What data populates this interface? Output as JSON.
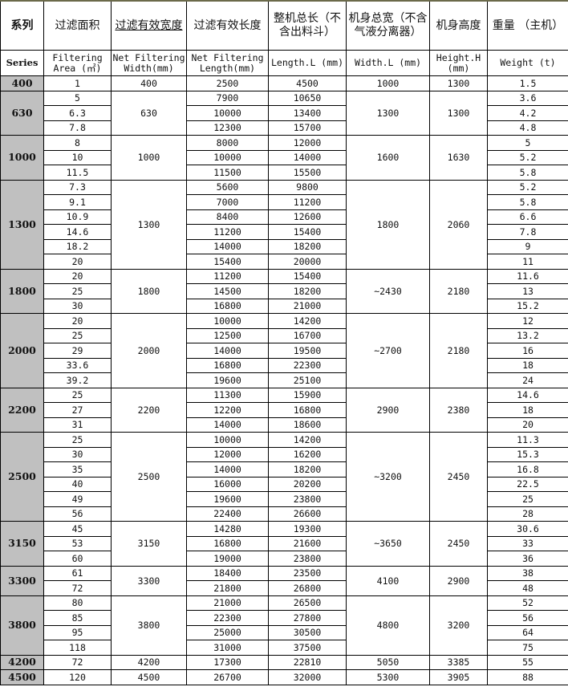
{
  "header_cn": [
    "系列",
    "过滤面积",
    "过滤有效宽度",
    "过滤有效长度",
    "整机总长（不含出料斗）",
    "机身总宽（不含气液分离器）",
    "机身高度",
    "重量 （主机）"
  ],
  "header_en": [
    "Series",
    "Filtering Area (㎡)",
    "Net Filtering Width(mm)",
    "Net Filtering Length(mm)",
    "Length.L (mm)",
    "Width.L (mm)",
    "Height.H (mm)",
    "Weight (t)"
  ],
  "groups": [
    {
      "series": "400",
      "width": "400",
      "body_width": "1000",
      "height": "1300",
      "rows": [
        [
          "1",
          "2500",
          "4500",
          "1.5"
        ]
      ]
    },
    {
      "series": "630",
      "width": "630",
      "body_width": "1300",
      "height": "1300",
      "rows": [
        [
          "5",
          "7900",
          "10650",
          "3.6"
        ],
        [
          "6.3",
          "10000",
          "13400",
          "4.2"
        ],
        [
          "7.8",
          "12300",
          "15700",
          "4.8"
        ]
      ]
    },
    {
      "series": "1000",
      "width": "1000",
      "body_width": "1600",
      "height": "1630",
      "rows": [
        [
          "8",
          "8000",
          "12000",
          "5"
        ],
        [
          "10",
          "10000",
          "14000",
          "5.2"
        ],
        [
          "11.5",
          "11500",
          "15500",
          "5.8"
        ]
      ]
    },
    {
      "series": "1300",
      "width": "1300",
      "body_width": "1800",
      "height": "2060",
      "rows": [
        [
          "7.3",
          "5600",
          "9800",
          "5.2"
        ],
        [
          "9.1",
          "7000",
          "11200",
          "5.8"
        ],
        [
          "10.9",
          "8400",
          "12600",
          "6.6"
        ],
        [
          "14.6",
          "11200",
          "15400",
          "7.8"
        ],
        [
          "18.2",
          "14000",
          "18200",
          "9"
        ],
        [
          "20",
          "15400",
          "20000",
          "11"
        ]
      ]
    },
    {
      "series": "1800",
      "width": "1800",
      "body_width": "~2430",
      "height": "2180",
      "rows": [
        [
          "20",
          "11200",
          "15400",
          "11.6"
        ],
        [
          "25",
          "14500",
          "18200",
          "13"
        ],
        [
          "30",
          "16800",
          "21000",
          "15.2"
        ]
      ]
    },
    {
      "series": "2000",
      "width": "2000",
      "body_width": "~2700",
      "height": "2180",
      "rows": [
        [
          "20",
          "10000",
          "14200",
          "12"
        ],
        [
          "25",
          "12500",
          "16700",
          "13.2"
        ],
        [
          "29",
          "14000",
          "19500",
          "16"
        ],
        [
          "33.6",
          "16800",
          "22300",
          "18"
        ],
        [
          "39.2",
          "19600",
          "25100",
          "24"
        ]
      ]
    },
    {
      "series": "2200",
      "width": "2200",
      "body_width": "2900",
      "height": "2380",
      "rows": [
        [
          "25",
          "11300",
          "15900",
          "14.6"
        ],
        [
          "27",
          "12200",
          "16800",
          "18"
        ],
        [
          "31",
          "14000",
          "18600",
          "20"
        ]
      ]
    },
    {
      "series": "2500",
      "width": "2500",
      "body_width": "~3200",
      "height": "2450",
      "rows": [
        [
          "25",
          "10000",
          "14200",
          "11.3"
        ],
        [
          "30",
          "12000",
          "16200",
          "15.3"
        ],
        [
          "35",
          "14000",
          "18200",
          "16.8"
        ],
        [
          "40",
          "16000",
          "20200",
          "22.5"
        ],
        [
          "49",
          "19600",
          "23800",
          "25"
        ],
        [
          "56",
          "22400",
          "26600",
          "28"
        ]
      ]
    },
    {
      "series": "3150",
      "width": "3150",
      "body_width": "~3650",
      "height": "2450",
      "rows": [
        [
          "45",
          "14280",
          "19300",
          "30.6"
        ],
        [
          "53",
          "16800",
          "21600",
          "33"
        ],
        [
          "60",
          "19000",
          "23800",
          "36"
        ]
      ]
    },
    {
      "series": "3300",
      "width": "3300",
      "body_width": "4100",
      "height": "2900",
      "rows": [
        [
          "61",
          "18400",
          "23500",
          "38"
        ],
        [
          "72",
          "21800",
          "26800",
          "48"
        ]
      ]
    },
    {
      "series": "3800",
      "width": "3800",
      "body_width": "4800",
      "height": "3200",
      "rows": [
        [
          "80",
          "21000",
          "26500",
          "52"
        ],
        [
          "85",
          "22300",
          "27800",
          "56"
        ],
        [
          "95",
          "25000",
          "30500",
          "64"
        ],
        [
          "118",
          "31000",
          "37500",
          "75"
        ]
      ]
    },
    {
      "series": "4200",
      "width": "4200",
      "body_width": "5050",
      "height": "3385",
      "rows": [
        [
          "72",
          "17300",
          "22810",
          "55"
        ]
      ]
    },
    {
      "series": "4500",
      "width": "4500",
      "body_width": "5300",
      "height": "3905",
      "rows": [
        [
          "120",
          "26700",
          "32000",
          "88"
        ]
      ]
    }
  ]
}
